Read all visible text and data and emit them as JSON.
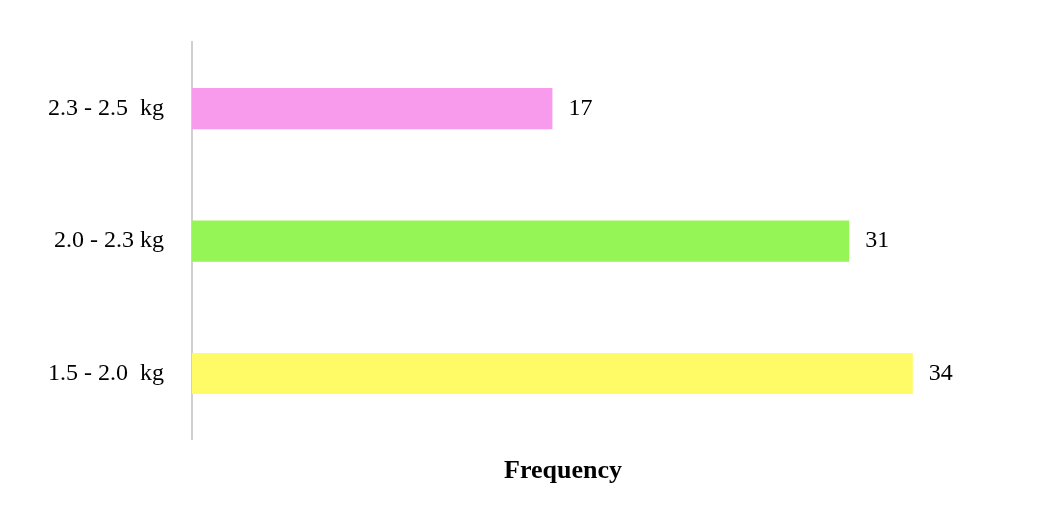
{
  "chart_data": {
    "type": "bar",
    "orientation": "horizontal",
    "categories": [
      "2.3 - 2.5  kg",
      "2.0 - 2.3 kg",
      "1.5 - 2.0  kg"
    ],
    "values": [
      17,
      31,
      34
    ],
    "colors": [
      "#f99bec",
      "#96f556",
      "#fffb66"
    ],
    "xlabel": "Frequency",
    "data_labels": true,
    "tick_labels": "y",
    "grid": false,
    "legend": false
  }
}
